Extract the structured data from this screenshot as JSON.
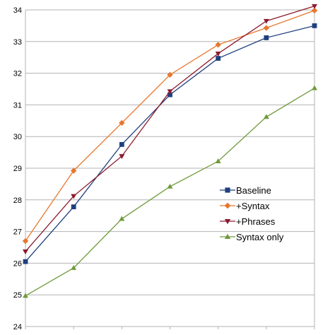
{
  "chart_data": {
    "type": "line",
    "x": [
      1,
      2,
      3,
      4,
      5,
      6,
      7
    ],
    "series": [
      {
        "name": "Baseline",
        "values": [
          26.05,
          27.78,
          29.75,
          31.32,
          32.47,
          33.12,
          33.5
        ]
      },
      {
        "name": "+Syntax",
        "values": [
          26.7,
          28.92,
          30.43,
          31.95,
          32.9,
          33.43,
          33.98
        ]
      },
      {
        "name": "+Phrases",
        "values": [
          26.37,
          28.12,
          29.38,
          31.43,
          32.62,
          33.65,
          34.12
        ]
      },
      {
        "name": "Syntax only",
        "values": [
          24.97,
          25.85,
          27.4,
          28.42,
          29.22,
          30.62,
          31.53
        ]
      }
    ],
    "ylim": [
      24,
      34
    ],
    "yticks": [
      "24",
      "25",
      "26",
      "27",
      "28",
      "29",
      "30",
      "31",
      "32",
      "33",
      "34"
    ],
    "xtick_labels": [
      "",
      "",
      "",
      "",
      "",
      "",
      ""
    ],
    "colors": [
      "#1f3f7f",
      "#e8772e",
      "#8c1a2e",
      "#6f9a3c"
    ],
    "markers": [
      "square",
      "diamond",
      "triangle-down",
      "triangle-up"
    ],
    "grid": "horizontal",
    "legend": "right"
  }
}
